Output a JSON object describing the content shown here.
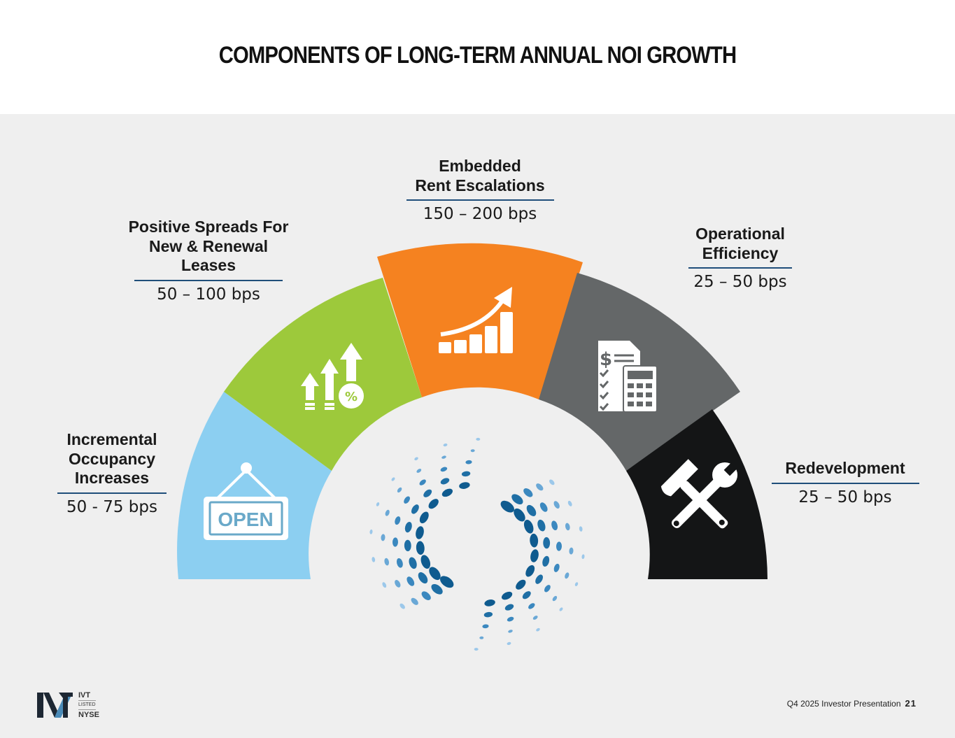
{
  "title": "COMPONENTS OF LONG-TERM ANNUAL NOI GROWTH",
  "segments": [
    {
      "name": "Incremental\nOccupancy\nIncreases",
      "value": "50 - 75 bps",
      "color": "#8ccff1",
      "icon": "open-sign-icon",
      "icon_text": "OPEN"
    },
    {
      "name": "Positive Spreads For\nNew & Renewal\nLeases",
      "value": "50 – 100 bps",
      "color": "#9dc93b",
      "icon": "arrows-percent-icon"
    },
    {
      "name": "Embedded\nRent Escalations",
      "value": "150 – 200 bps",
      "color": "#f58220",
      "icon": "growth-chart-icon"
    },
    {
      "name": "Operational\nEfficiency",
      "value": "25 – 50 bps",
      "color": "#646768",
      "icon": "invoice-calculator-icon"
    },
    {
      "name": "Redevelopment",
      "value": "25 – 50 bps",
      "color": "#141516",
      "icon": "tools-icon"
    }
  ],
  "footer": {
    "presentation": "Q4 2025 Investor Presentation",
    "page": "21"
  },
  "logo": {
    "ticker": "IVT",
    "listed": "LISTED",
    "exchange": "NYSE",
    "icon": "ivt-logo-icon"
  },
  "center_icon": "swirl-logo-icon"
}
